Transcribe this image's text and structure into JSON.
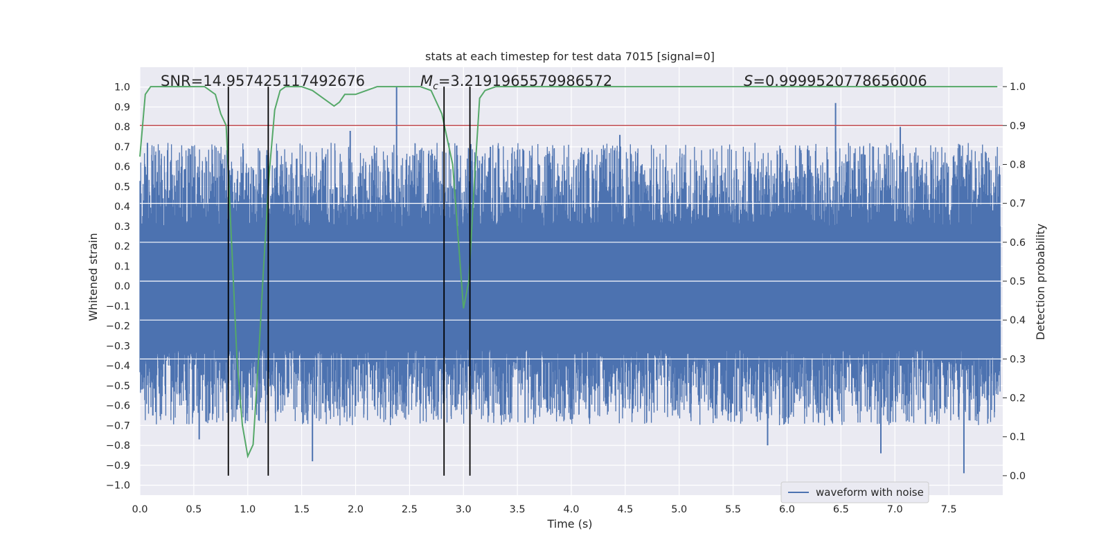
{
  "chart_data": {
    "type": "line",
    "title": "stats at each timestep for test data 7015 [signal=0]",
    "xlabel": "Time (s)",
    "ylabel": "Whitened strain",
    "y2label": "Detection probability",
    "xlim": [
      0,
      8
    ],
    "ylim": [
      -1.05,
      1.1
    ],
    "y2lim": [
      -0.05,
      1.05
    ],
    "xticks": [
      "0.0",
      "0.5",
      "1.0",
      "1.5",
      "2.0",
      "2.5",
      "3.0",
      "3.5",
      "4.0",
      "4.5",
      "5.0",
      "5.5",
      "6.0",
      "6.5",
      "7.0",
      "7.5"
    ],
    "yticks": [
      "1.0",
      "0.9",
      "0.8",
      "0.7",
      "0.6",
      "0.5",
      "0.4",
      "0.3",
      "0.2",
      "0.1",
      "0.0",
      "-0.1",
      "-0.2",
      "-0.3",
      "-0.4",
      "-0.5",
      "-0.6",
      "-0.7",
      "-0.8",
      "-0.9",
      "-1.0"
    ],
    "y2ticks": [
      "1.0",
      "0.9",
      "0.8",
      "0.7",
      "0.6",
      "0.5",
      "0.4",
      "0.3",
      "0.2",
      "0.1",
      "0.0"
    ],
    "grid": true,
    "legend_position": "bottom-right",
    "annotations": {
      "snr": "SNR=14.957425117492676",
      "mc_symbol": "M",
      "mc_sub": "c",
      "mc_value": "=3.2191965579986572",
      "s_symbol": "S",
      "s_value": "=0.9999520778656006"
    },
    "series": [
      {
        "name": "waveform with noise",
        "axis": "left",
        "color": "#4c72b0",
        "envelope_note": "dense noise trace",
        "spikes": [
          {
            "x": 0.05,
            "y": 0.6
          },
          {
            "x": 0.07,
            "y": 0.72
          },
          {
            "x": 0.12,
            "y": -0.65
          },
          {
            "x": 0.55,
            "y": -0.77
          },
          {
            "x": 0.9,
            "y": -0.62
          },
          {
            "x": 1.6,
            "y": -0.88
          },
          {
            "x": 1.95,
            "y": 0.78
          },
          {
            "x": 2.38,
            "y": 1.0
          },
          {
            "x": 3.25,
            "y": 0.7
          },
          {
            "x": 4.45,
            "y": 0.76
          },
          {
            "x": 6.45,
            "y": 0.92
          },
          {
            "x": 5.82,
            "y": -0.8
          },
          {
            "x": 6.87,
            "y": -0.84
          },
          {
            "x": 7.64,
            "y": -0.94
          },
          {
            "x": 7.05,
            "y": 0.8
          }
        ]
      },
      {
        "name": "",
        "axis": "right",
        "color": "#55a868",
        "x": [
          0.0,
          0.05,
          0.1,
          0.2,
          0.3,
          0.4,
          0.5,
          0.6,
          0.7,
          0.75,
          0.8,
          0.85,
          0.9,
          0.95,
          1.0,
          1.05,
          1.1,
          1.15,
          1.2,
          1.25,
          1.3,
          1.35,
          1.4,
          1.45,
          1.5,
          1.6,
          1.7,
          1.8,
          1.85,
          1.9,
          2.0,
          2.1,
          2.2,
          2.4,
          2.6,
          2.7,
          2.8,
          2.9,
          3.0,
          3.05,
          3.1,
          3.15,
          3.2,
          3.3,
          3.5,
          4.0,
          4.5,
          5.0,
          5.5,
          6.0,
          6.5,
          7.0,
          7.5,
          7.95
        ],
        "y": [
          0.82,
          0.98,
          1.0,
          1.0,
          1.0,
          1.0,
          1.0,
          1.0,
          0.98,
          0.93,
          0.9,
          0.6,
          0.3,
          0.13,
          0.05,
          0.08,
          0.3,
          0.55,
          0.78,
          0.94,
          0.99,
          1.0,
          1.0,
          1.0,
          1.0,
          0.99,
          0.97,
          0.95,
          0.96,
          0.98,
          0.98,
          0.99,
          1.0,
          1.0,
          1.0,
          0.99,
          0.93,
          0.8,
          0.43,
          0.5,
          0.75,
          0.97,
          0.99,
          1.0,
          1.0,
          1.0,
          1.0,
          1.0,
          1.0,
          1.0,
          1.0,
          1.0,
          1.0,
          1.0
        ]
      }
    ],
    "threshold": {
      "axis": "right",
      "value": 0.9,
      "color": "#c44e52"
    },
    "vlines": [
      0.82,
      1.19,
      2.82,
      3.06
    ],
    "vline_color": "#000000"
  }
}
